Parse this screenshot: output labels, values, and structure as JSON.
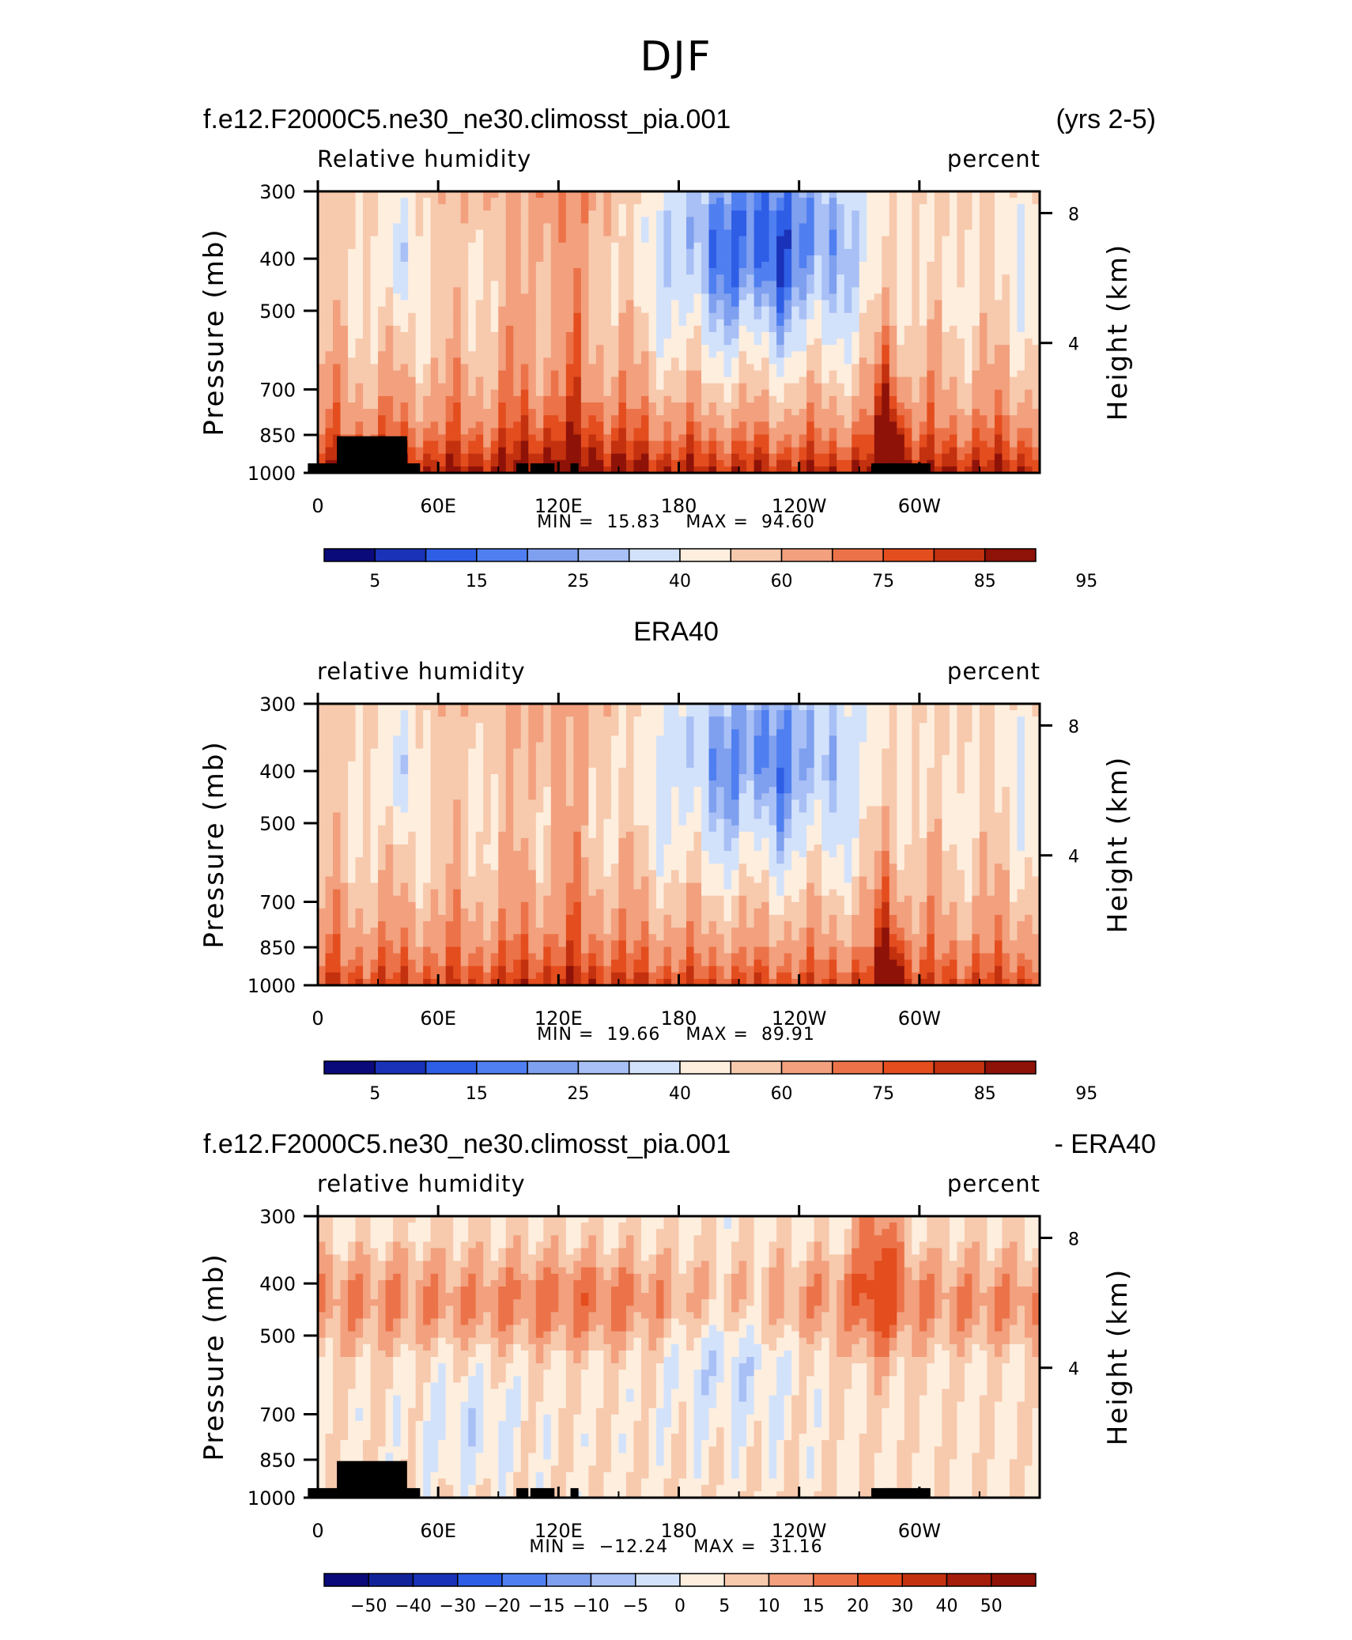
{
  "figure": {
    "title": "DJF"
  },
  "chart_data": [
    {
      "type": "heatmap",
      "title_left": "f.e12.F2000C5.ne30_ne30.climosst_pia.001",
      "title_right": "(yrs 2-5)",
      "variable": "Relative humidity",
      "units": "percent",
      "ylabel": "Pressure (mb)",
      "ylabel_right": "Height (km)",
      "x_ticks": [
        "0",
        "60E",
        "120E",
        "180",
        "120W",
        "60W"
      ],
      "y_ticks": [
        "300",
        "400",
        "500",
        "700",
        "850",
        "1000"
      ],
      "y_ticks_right": [
        "8",
        "4"
      ],
      "min_label": "MIN =",
      "min": "15.83",
      "max_label": "MAX =",
      "max": "94.60",
      "colorbar_labels": [
        "5",
        "15",
        "25",
        "40",
        "60",
        "75",
        "85",
        "95"
      ],
      "colors": [
        "#0a0a7a",
        "#1a32b8",
        "#2e5ee6",
        "#4f7ff0",
        "#7f9fef",
        "#a8c0f5",
        "#d3e2fb",
        "#fdeede",
        "#f7c9ad",
        "#f2a07e",
        "#ec7349",
        "#e44d1e",
        "#c3310f",
        "#8e1208"
      ],
      "has_topography": true,
      "fields": {
        "east_wet": 0.75,
        "pac_dry": -1.2,
        "andes": 1.0,
        "lowlevel": 1.5
      }
    },
    {
      "type": "heatmap",
      "title_center": "ERA40",
      "variable": "relative humidity",
      "units": "percent",
      "ylabel": "Pressure (mb)",
      "ylabel_right": "Height (km)",
      "x_ticks": [
        "0",
        "60E",
        "120E",
        "180",
        "120W",
        "60W"
      ],
      "y_ticks": [
        "300",
        "400",
        "500",
        "700",
        "850",
        "1000"
      ],
      "y_ticks_right": [
        "8",
        "4"
      ],
      "min_label": "MIN =",
      "min": "19.66",
      "max_label": "MAX =",
      "max": "89.91",
      "colorbar_labels": [
        "5",
        "15",
        "25",
        "40",
        "60",
        "75",
        "85",
        "95"
      ],
      "colors": [
        "#0a0a7a",
        "#1a32b8",
        "#2e5ee6",
        "#4f7ff0",
        "#7f9fef",
        "#a8c0f5",
        "#d3e2fb",
        "#fdeede",
        "#f7c9ad",
        "#f2a07e",
        "#ec7349",
        "#e44d1e",
        "#c3310f",
        "#8e1208"
      ],
      "has_topography": false,
      "fields": {
        "east_wet": 0.45,
        "pac_dry": -1.0,
        "andes": 0.8,
        "lowlevel": 1.3
      }
    },
    {
      "type": "heatmap",
      "title_left": "f.e12.F2000C5.ne30_ne30.climosst_pia.001",
      "title_right": "- ERA40",
      "variable": "relative humidity",
      "units": "percent",
      "ylabel": "Pressure (mb)",
      "ylabel_right": "Height (km)",
      "x_ticks": [
        "0",
        "60E",
        "120E",
        "180",
        "120W",
        "60W"
      ],
      "y_ticks": [
        "300",
        "400",
        "500",
        "700",
        "850",
        "1000"
      ],
      "y_ticks_right": [
        "8",
        "4"
      ],
      "min_label": "MIN =",
      "min": "−12.24",
      "max_label": "MAX =",
      "max": "31.16",
      "colorbar_labels": [
        "−50",
        "−40",
        "−30",
        "−20",
        "−15",
        "−10",
        "−5",
        "0",
        "5",
        "10",
        "15",
        "20",
        "30",
        "40",
        "50"
      ],
      "colors": [
        "#0a0a7a",
        "#12239a",
        "#1a32b8",
        "#2e5ee6",
        "#4f7ff0",
        "#7f9fef",
        "#a8c0f5",
        "#d3e2fb",
        "#fdeede",
        "#f7c9ad",
        "#f2a07e",
        "#ec7349",
        "#e44d1e",
        "#c3310f",
        "#a51d0b",
        "#8e1208"
      ],
      "has_topography": true,
      "fields": {
        "east_wet": 0.3,
        "pac_dry": -0.5,
        "andes": 0.7,
        "lowlevel": 0.15
      }
    }
  ]
}
